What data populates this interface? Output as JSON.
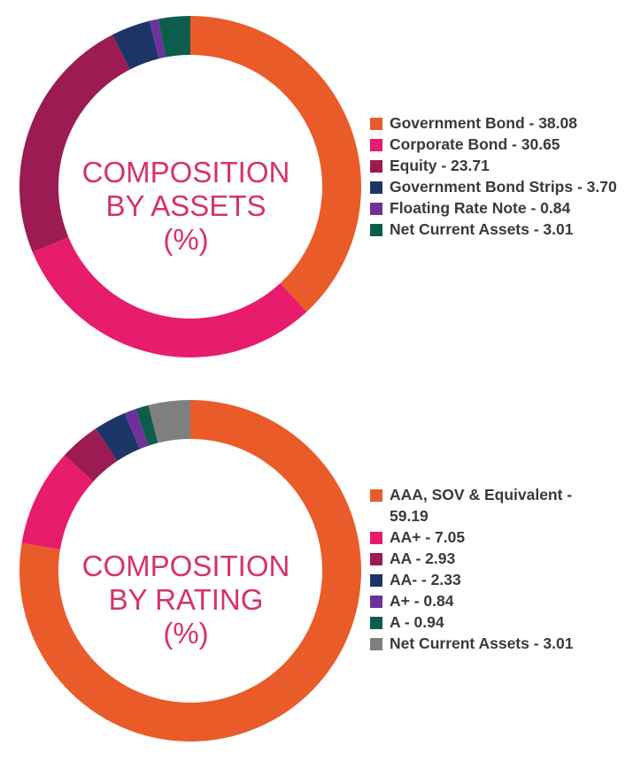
{
  "chart_data": [
    {
      "type": "pie",
      "donut": true,
      "title": "COMPOSITION BY ASSETS (%)",
      "title_lines": [
        "COMPOSITION",
        "BY ASSETS",
        "(%)"
      ],
      "legend_position": "right",
      "slices": [
        {
          "name": "Government Bond",
          "value": 38.08,
          "label": "Government Bond - 38.08",
          "color": "#ea5b2a"
        },
        {
          "name": "Corporate Bond",
          "value": 30.65,
          "label": "Corporate Bond - 30.65",
          "color": "#e81c6c"
        },
        {
          "name": "Equity",
          "value": 23.71,
          "label": "Equity - 23.71",
          "color": "#9b1b52"
        },
        {
          "name": "Government Bond Strips",
          "value": 3.7,
          "label": "Government Bond Strips - 3.70",
          "color": "#1d3566"
        },
        {
          "name": "Floating Rate Note",
          "value": 0.84,
          "label": "Floating Rate Note - 0.84",
          "color": "#70309a"
        },
        {
          "name": "Net Current Assets",
          "value": 3.01,
          "label": "Net Current Assets - 3.01",
          "color": "#0d5d4c"
        }
      ]
    },
    {
      "type": "pie",
      "donut": true,
      "title": "COMPOSITION BY RATING (%)",
      "title_lines": [
        "COMPOSITION",
        "BY RATING",
        "(%)"
      ],
      "legend_position": "right",
      "slices": [
        {
          "name": "AAA, SOV & Equivalent",
          "value": 59.19,
          "label": "AAA, SOV & Equivalent -\n59.19",
          "color": "#ea5b2a"
        },
        {
          "name": "AA+",
          "value": 7.05,
          "label": "AA+ - 7.05",
          "color": "#e81c6c"
        },
        {
          "name": "AA",
          "value": 2.93,
          "label": "AA - 2.93",
          "color": "#9b1b52"
        },
        {
          "name": "AA-",
          "value": 2.33,
          "label": "AA- - 2.33",
          "color": "#1d3566"
        },
        {
          "name": "A+",
          "value": 0.84,
          "label": "A+ - 0.84",
          "color": "#70309a"
        },
        {
          "name": "A",
          "value": 0.94,
          "label": "A - 0.94",
          "color": "#0d5d4c"
        },
        {
          "name": "Net Current Assets",
          "value": 3.01,
          "label": "Net Current Assets - 3.01",
          "color": "#7f7f7f"
        }
      ]
    }
  ]
}
